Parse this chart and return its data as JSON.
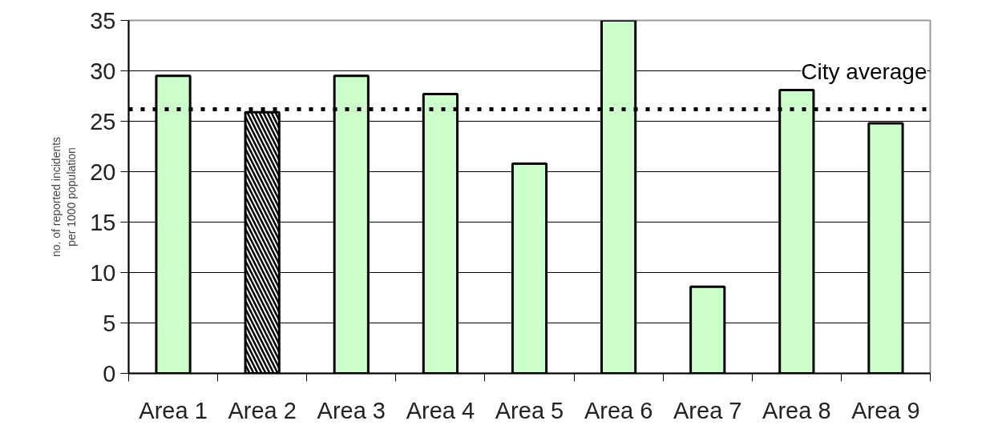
{
  "chart_data": {
    "type": "bar",
    "ylabel": "no. of reported incidents per 1000 population",
    "categories": [
      "Area 1",
      "Area 2",
      "Area 3",
      "Area 4",
      "Area 5",
      "Area 6",
      "Area 7",
      "Area 8",
      "Area 9"
    ],
    "values": [
      29.5,
      25.9,
      29.5,
      27.7,
      20.8,
      35,
      8.6,
      28.1,
      24.8
    ],
    "colors": [
      "#ccffcc",
      "#ffffff",
      "#ccffcc",
      "#ccffcc",
      "#ccffcc",
      "#ccffcc",
      "#ccffcc",
      "#ccffcc",
      "#ccffcc"
    ],
    "ylim": [
      0,
      35
    ],
    "yticks": [
      0,
      5,
      10,
      15,
      20,
      25,
      30,
      35
    ],
    "grid": "y",
    "ref_lines": [
      {
        "axis": "y",
        "value": 26.2,
        "label": "City average",
        "color": "#000000",
        "line_style": "dotted"
      }
    ]
  }
}
